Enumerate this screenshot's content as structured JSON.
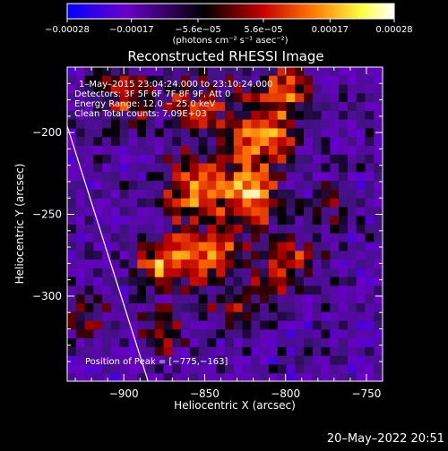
{
  "chart_data": {
    "type": "heatmap",
    "title": "Reconstructed RHESSI Image",
    "xlabel": "Heliocentric X (arcsec)",
    "ylabel": "Heliocentric Y (arcsec)",
    "xlim": [
      -935,
      -740
    ],
    "ylim": [
      -352,
      -160
    ],
    "xticks": [
      -900,
      -850,
      -800,
      -750
    ],
    "xtick_labels": [
      "−900",
      "−850",
      "−800",
      "−750"
    ],
    "yticks": [
      -200,
      -250,
      -300
    ],
    "ytick_labels": [
      "−200",
      "−250",
      "−300"
    ],
    "colorbar": {
      "ticks": [
        -0.00028,
        -0.00017,
        -5.6e-05,
        5.6e-05,
        0.00017,
        0.00028
      ],
      "tick_labels": [
        "−0.00028",
        "−0.00017",
        "−5.6e−05",
        "5.6e−05",
        "0.00017",
        "0.00028"
      ],
      "units": "(photons cm⁻² s⁻¹ asec⁻²)",
      "colors": [
        "#0000ff",
        "#6a00c8",
        "#000000",
        "#c80000",
        "#ff7800",
        "#ffff40",
        "#ffffff"
      ]
    },
    "annotations": [
      "1–May–2015 23:04:24.000 to 23:10:24.000",
      "Detectors: 3F 5F 6F 7F 8F 9F, Att 0",
      "Energy Range: 12.0 − 25.0 keV",
      "Clean     Total counts: 7.09E+03",
      "Position of Peak = [−775,−163]"
    ],
    "peak_position": [
      -775,
      -163
    ],
    "total_counts": 7090,
    "energy_range_kev": [
      12.0,
      25.0
    ],
    "limb_line": [
      [
        -935,
        -196
      ],
      [
        -885,
        -352
      ]
    ]
  },
  "timestamp": "20–May–2022 20:51"
}
